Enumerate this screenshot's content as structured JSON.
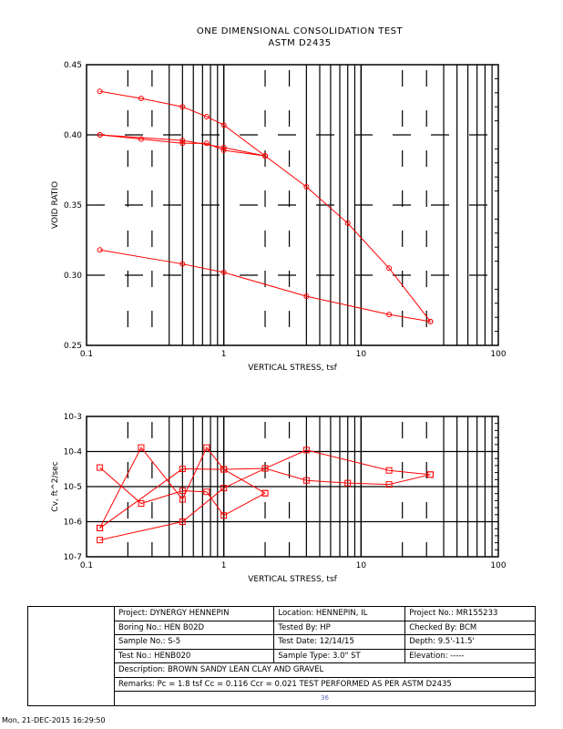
{
  "title": {
    "line1": "ONE   DIMENSIONAL      CONSOLIDATION      TEST",
    "line2": "ASTM   D2435"
  },
  "chart_data": [
    {
      "type": "line",
      "title": "",
      "xlabel": "VERTICAL STRESS, tsf",
      "ylabel": "VOID RATIO",
      "xscale": "log",
      "xlim": [
        0.1,
        100
      ],
      "ylim": [
        0.25,
        0.45
      ],
      "xticks": [
        "0.1",
        "1",
        "10",
        "100"
      ],
      "yticks": [
        "0.25",
        "0.30",
        "0.35",
        "0.40",
        "0.45"
      ],
      "grid": true,
      "color": "#ff0000",
      "series": [
        {
          "name": "load-1",
          "points": [
            [
              0.125,
              0.431
            ],
            [
              0.25,
              0.426
            ],
            [
              0.5,
              0.42
            ],
            [
              0.75,
              0.413
            ],
            [
              1,
              0.407
            ],
            [
              2,
              0.385
            ]
          ]
        },
        {
          "name": "unload-1",
          "points": [
            [
              2,
              0.385
            ],
            [
              1,
              0.391
            ],
            [
              0.5,
              0.396
            ],
            [
              0.125,
              0.4
            ]
          ]
        },
        {
          "name": "reload",
          "points": [
            [
              0.125,
              0.4
            ],
            [
              0.25,
              0.397
            ],
            [
              0.5,
              0.394
            ],
            [
              0.75,
              0.394
            ],
            [
              1,
              0.389
            ],
            [
              2,
              0.385
            ],
            [
              4,
              0.363
            ],
            [
              8,
              0.337
            ],
            [
              16,
              0.305
            ],
            [
              32,
              0.267
            ]
          ]
        },
        {
          "name": "unload-2",
          "points": [
            [
              32,
              0.267
            ],
            [
              16,
              0.272
            ],
            [
              4,
              0.285
            ],
            [
              1,
              0.302
            ],
            [
              0.5,
              0.308
            ],
            [
              0.125,
              0.318
            ]
          ]
        }
      ]
    },
    {
      "type": "line",
      "title": "",
      "xlabel": "VERTICAL STRESS, tsf",
      "ylabel": "Cv, ft^2/sec",
      "xscale": "log",
      "yscale": "log",
      "xlim": [
        0.1,
        100
      ],
      "ylim": [
        1e-07,
        0.001
      ],
      "xticks": [
        "0.1",
        "1",
        "10",
        "100"
      ],
      "yticks": [
        "10-7",
        "10-6",
        "10-5",
        "10-4",
        "10-3"
      ],
      "grid": true,
      "color": "#ff0000",
      "series": [
        {
          "name": "cv-1",
          "points": [
            [
              0.125,
              3.5e-05
            ],
            [
              0.25,
              3.3e-06
            ],
            [
              0.5,
              7.6e-06
            ],
            [
              0.75,
              7.1e-06
            ],
            [
              1,
              1.5e-06
            ],
            [
              2,
              6.5e-06
            ]
          ]
        },
        {
          "name": "cv-2",
          "points": [
            [
              0.125,
              6.6e-07
            ],
            [
              0.25,
              0.00013
            ],
            [
              0.5,
              4.3e-06
            ],
            [
              0.75,
              0.00013
            ],
            [
              1,
              3.1e-05
            ],
            [
              2,
              6.5e-06
            ]
          ]
        },
        {
          "name": "cv-3",
          "points": [
            [
              0.125,
              6.6e-07
            ],
            [
              0.5,
              3.2e-05
            ],
            [
              1,
              3.1e-05
            ],
            [
              2,
              3.3e-05
            ],
            [
              4,
              0.00011
            ],
            [
              16,
              2.9e-05
            ],
            [
              32,
              2.2e-05
            ]
          ]
        },
        {
          "name": "cv-4",
          "points": [
            [
              0.125,
              3e-07
            ],
            [
              0.5,
              1e-06
            ],
            [
              1,
              9.1e-06
            ],
            [
              2,
              3.3e-05
            ],
            [
              4,
              1.5e-05
            ],
            [
              8,
              1.26e-05
            ],
            [
              16,
              1.15e-05
            ],
            [
              32,
              2.2e-05
            ]
          ]
        }
      ]
    }
  ],
  "info": {
    "project": "Project: DYNERGY HENNEPIN",
    "location": "Location: HENNEPIN, IL",
    "project_no": "Project No.: MR155233",
    "boring": "Boring No.: HEN B02D",
    "tested_by": "Tested By: HP",
    "checked_by": "Checked By: BCM",
    "sample": "Sample No.: S-5",
    "test_date": "Test Date: 12/14/15",
    "depth": "Depth: 9.5'-11.5'",
    "test_no": "Test No.: HENB020",
    "sample_type": "Sample Type: 3.0\" ST",
    "elevation": "Elevation: -----",
    "description": "Description: BROWN SANDY LEAN CLAY AND GRAVEL",
    "remarks": "Remarks: Pc = 1.8 tsf Cc = 0.116 Ccr = 0.021 TEST PERFORMED AS PER ASTM D2435",
    "page": "36"
  },
  "footer": "Mon, 21-DEC-2015 16:29:50"
}
